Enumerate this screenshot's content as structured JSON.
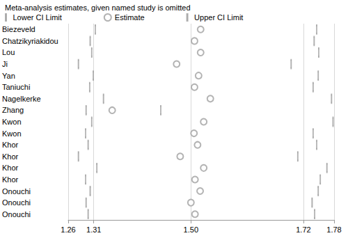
{
  "chart_data": {
    "type": "scatter",
    "title": "Meta-analysis estimates, given named study is omitted",
    "orientation": "horizontal",
    "categories": [
      "Biezeveld",
      "Chatzikyriakidou",
      "Lou",
      "Ji",
      "Yan",
      "Taniuchi",
      "Nagelkerke",
      "Zhang",
      "Kwon",
      "Kwon",
      "Khor",
      "Khor",
      "Khor",
      "Khor",
      "Onouchi",
      "Onouchi",
      "Onouchi"
    ],
    "series": [
      {
        "name": "Lower CI Limit",
        "color": "#a0a0a0",
        "marker": "tick",
        "values": [
          1.313,
          1.303,
          1.306,
          1.28,
          1.309,
          1.302,
          1.329,
          1.295,
          1.306,
          1.294,
          1.299,
          1.28,
          1.316,
          1.294,
          1.303,
          1.295,
          1.299
        ]
      },
      {
        "name": "Estimate",
        "color": "#a0a0a0",
        "marker": "hollow_circle",
        "values": [
          1.519,
          1.507,
          1.519,
          1.472,
          1.515,
          1.507,
          1.538,
          1.346,
          1.525,
          1.506,
          1.513,
          1.479,
          1.525,
          1.508,
          1.518,
          1.5,
          1.508
        ]
      },
      {
        "name": "Upper CI Limit",
        "color": "#a0a0a0",
        "marker": "tick",
        "values": [
          1.746,
          1.741,
          1.75,
          1.696,
          1.749,
          1.739,
          1.775,
          1.441,
          1.778,
          1.739,
          1.746,
          1.709,
          1.766,
          1.753,
          1.749,
          1.737,
          1.742
        ]
      }
    ],
    "xlim": [
      1.26,
      1.78
    ],
    "xticks": [
      1.26,
      1.31,
      {
        "value": 1.5,
        "label": "1.50"
      },
      1.72,
      1.78
    ],
    "grid": true,
    "legend": "top-left"
  }
}
